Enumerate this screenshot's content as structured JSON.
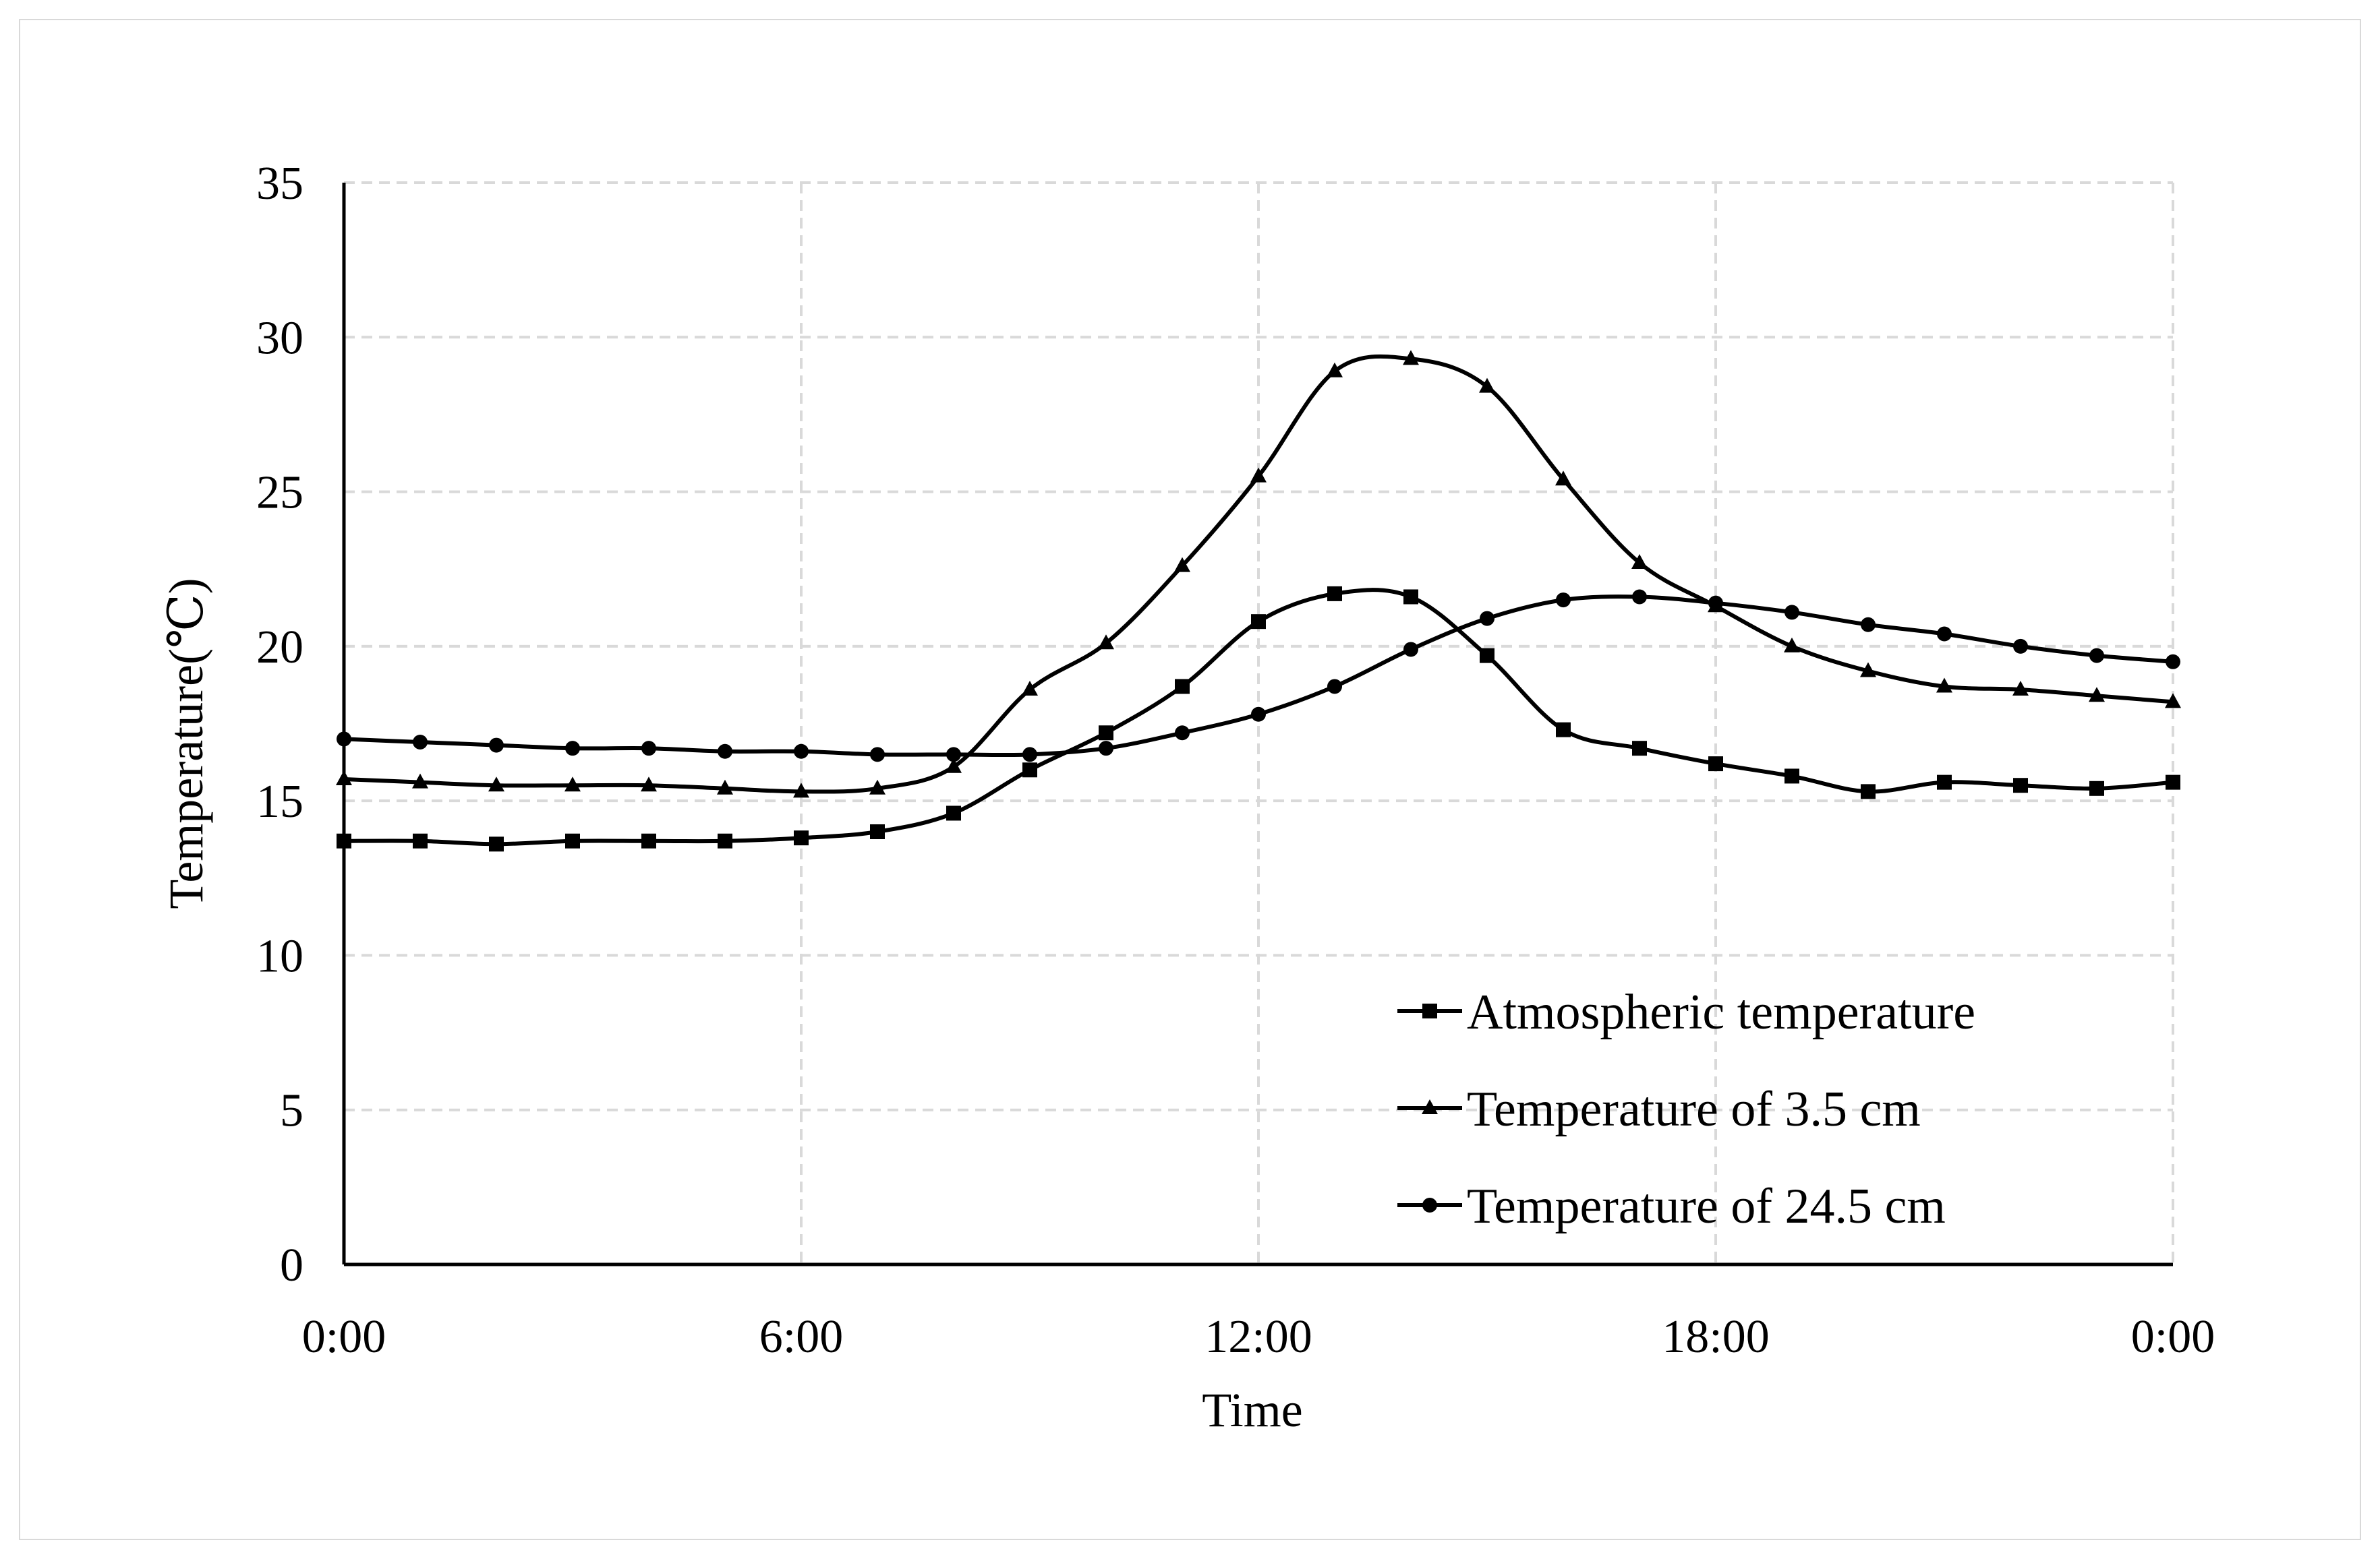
{
  "chart_data": {
    "type": "line",
    "title": "",
    "xlabel": "Time",
    "ylabel": "Temperature(℃)",
    "ylim": [
      0,
      35
    ],
    "xlim": [
      0,
      24
    ],
    "y_ticks": [
      0,
      5,
      10,
      15,
      20,
      25,
      30,
      35
    ],
    "x_ticks": [
      {
        "value": 0,
        "label": "0:00"
      },
      {
        "value": 6,
        "label": "6:00"
      },
      {
        "value": 12,
        "label": "12:00"
      },
      {
        "value": 18,
        "label": "18:00"
      },
      {
        "value": 24,
        "label": "0:00"
      }
    ],
    "grid": true,
    "legend_position": "bottom-right",
    "x": [
      0,
      1,
      2,
      3,
      4,
      5,
      6,
      7,
      8,
      9,
      10,
      11,
      12,
      13,
      14,
      15,
      16,
      17,
      18,
      19,
      20,
      21,
      22,
      23,
      24
    ],
    "series": [
      {
        "name": "Atmospheric temperature",
        "marker": "square",
        "values": [
          13.7,
          13.7,
          13.6,
          13.7,
          13.7,
          13.7,
          13.8,
          14.0,
          14.6,
          16.0,
          17.2,
          18.7,
          20.8,
          21.7,
          21.6,
          19.7,
          17.3,
          16.7,
          16.2,
          15.8,
          15.3,
          15.6,
          15.5,
          15.4,
          15.6
        ]
      },
      {
        "name": "Temperature of 3.5 cm",
        "marker": "triangle",
        "values": [
          15.7,
          15.6,
          15.5,
          15.5,
          15.5,
          15.4,
          15.3,
          15.4,
          16.1,
          18.6,
          20.1,
          22.6,
          25.5,
          28.9,
          29.3,
          28.4,
          25.4,
          22.7,
          21.3,
          20.0,
          19.2,
          18.7,
          18.6,
          18.4,
          18.2
        ]
      },
      {
        "name": "Temperature of 24.5 cm",
        "marker": "circle",
        "values": [
          17.0,
          16.9,
          16.8,
          16.7,
          16.7,
          16.6,
          16.6,
          16.5,
          16.5,
          16.5,
          16.7,
          17.2,
          17.8,
          18.7,
          19.9,
          20.9,
          21.5,
          21.6,
          21.4,
          21.1,
          20.7,
          20.4,
          20.0,
          19.7,
          19.5
        ]
      }
    ]
  }
}
